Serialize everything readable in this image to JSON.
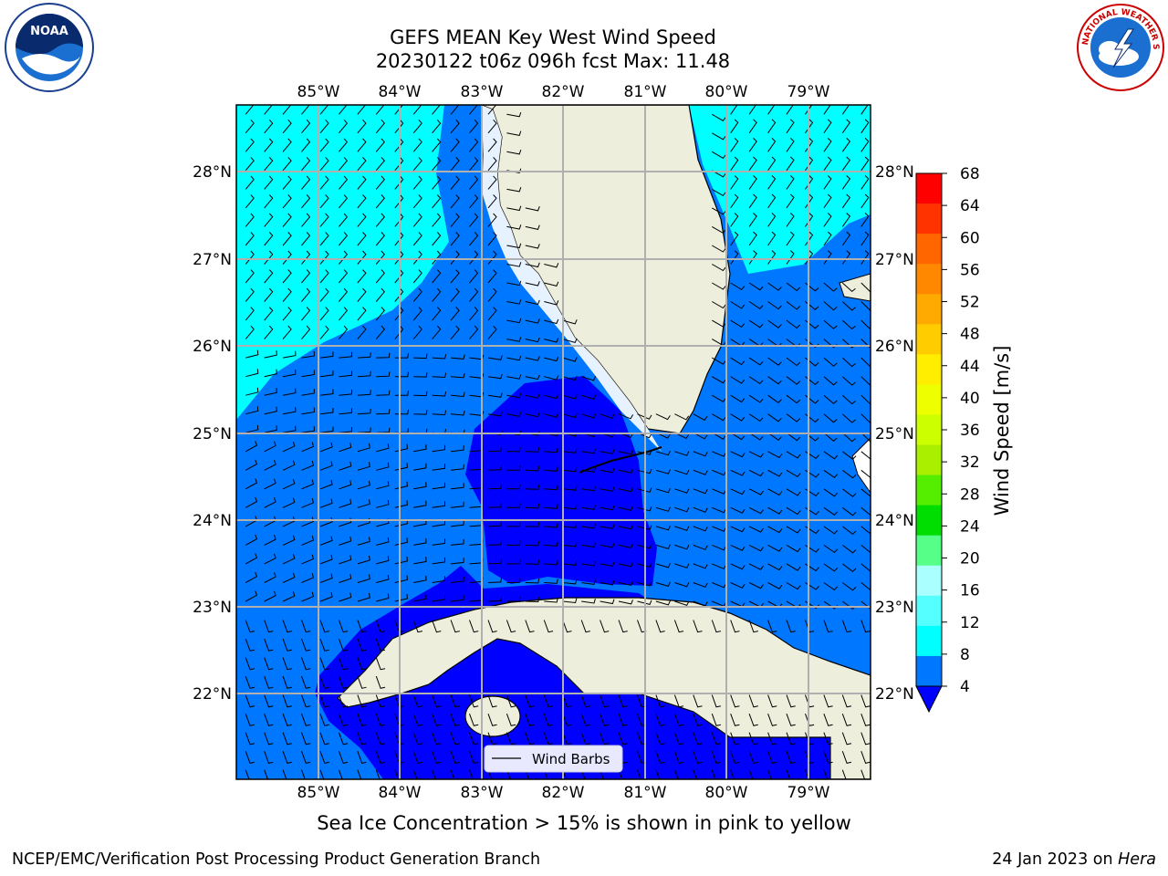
{
  "title": {
    "line1": "GEFS MEAN Key West Wind Speed",
    "line2": "20230122 t06z 096h fcst   Max: 11.48"
  },
  "map": {
    "lon_ticks": [
      "85°W",
      "84°W",
      "83°W",
      "82°W",
      "81°W",
      "80°W",
      "79°W"
    ],
    "lat_ticks": [
      "28°N",
      "27°N",
      "26°N",
      "25°N",
      "24°N",
      "23°N",
      "22°N"
    ],
    "lon_range": [
      -86.0,
      -78.3
    ],
    "lat_range": [
      21.0,
      28.8
    ],
    "land_color": "#eeeedd",
    "legend_label": "Wind Barbs"
  },
  "colorbar": {
    "label": "Wind Speed [m/s]",
    "ticks": [
      "68",
      "64",
      "60",
      "56",
      "52",
      "48",
      "44",
      "40",
      "36",
      "32",
      "28",
      "24",
      "20",
      "16",
      "12",
      "8",
      "4"
    ],
    "colors": [
      "#ff0000",
      "#ff3300",
      "#ff6600",
      "#ff8800",
      "#ffaa00",
      "#ffcc00",
      "#ffee00",
      "#eeff00",
      "#ccff00",
      "#aaee00",
      "#55ee00",
      "#00dd00",
      "#55ff88",
      "#aaffff",
      "#55ffff",
      "#00ffff",
      "#0077ff"
    ],
    "under_color": "#0000ff"
  },
  "caption": "Sea Ice Concentration > 15% is shown in pink to yellow",
  "footer": {
    "left": "NCEP/EMC/Verification Post Processing Product Generation Branch",
    "date": "24 Jan 2023 on ",
    "host": "Hera"
  },
  "logos": {
    "left": "NOAA",
    "right": "NATIONAL WEATHER SERVICE"
  }
}
